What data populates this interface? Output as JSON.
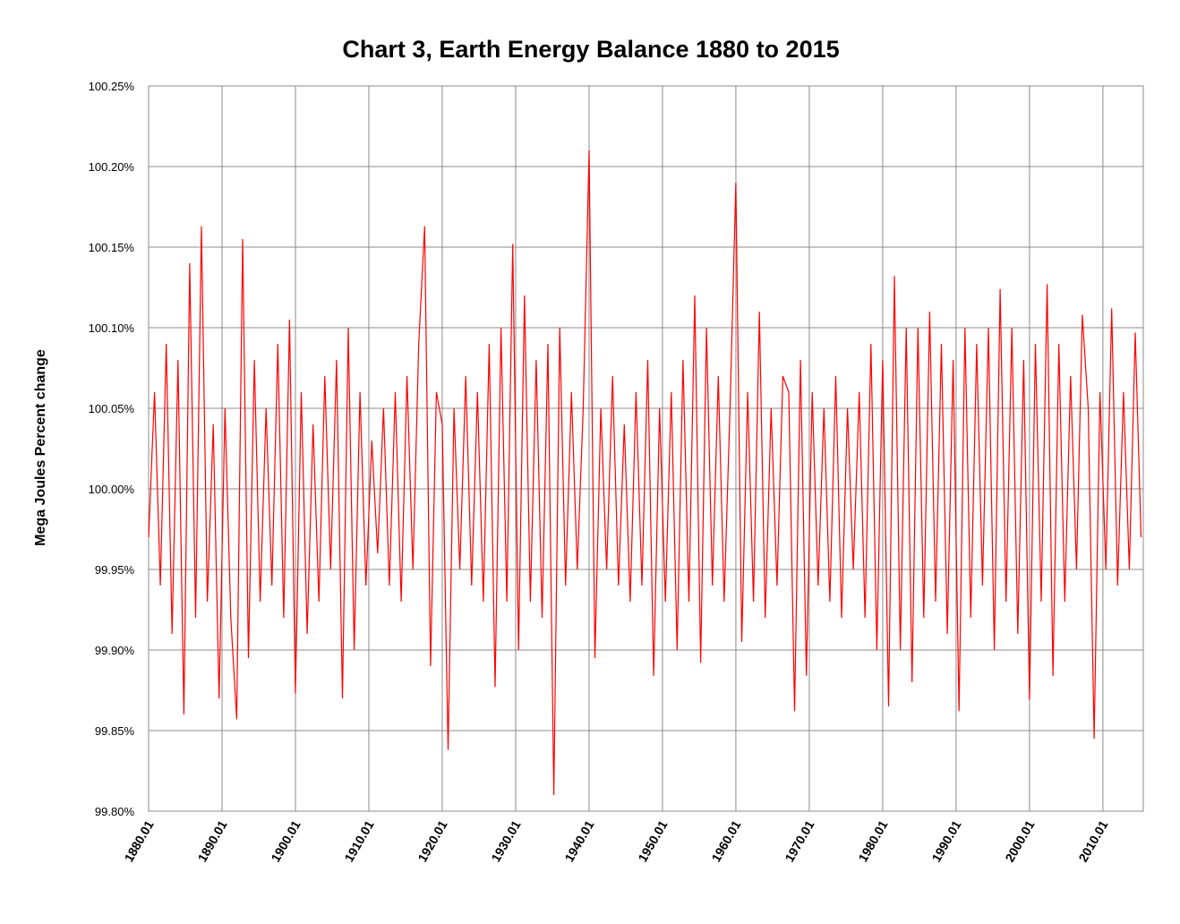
{
  "chart_data": {
    "type": "line",
    "title": "Chart 3, Earth Energy Balance 1880 to 2015",
    "y_label": "Mega Joules Percent change",
    "x": [
      1880.0,
      1880.8,
      1881.6,
      1882.4,
      1883.2,
      1884.0,
      1884.8,
      1885.6,
      1886.4,
      1887.2,
      1888.0,
      1888.8,
      1889.6,
      1890.4,
      1891.2,
      1892.0,
      1892.8,
      1893.6,
      1894.4,
      1895.2,
      1896.0,
      1896.8,
      1897.6,
      1898.4,
      1899.2,
      1900.0,
      1900.8,
      1901.6,
      1902.4,
      1903.2,
      1904.0,
      1904.8,
      1905.6,
      1906.4,
      1907.2,
      1908.0,
      1908.8,
      1909.6,
      1910.4,
      1911.2,
      1912.0,
      1912.8,
      1913.6,
      1914.4,
      1915.2,
      1916.0,
      1916.8,
      1917.6,
      1918.4,
      1919.2,
      1920.0,
      1920.8,
      1921.6,
      1922.4,
      1923.2,
      1924.0,
      1924.8,
      1925.6,
      1926.4,
      1927.2,
      1928.0,
      1928.8,
      1929.6,
      1930.4,
      1931.2,
      1932.0,
      1932.8,
      1933.6,
      1934.4,
      1935.2,
      1936.0,
      1936.8,
      1937.6,
      1938.4,
      1939.2,
      1940.0,
      1940.8,
      1941.6,
      1942.4,
      1943.2,
      1944.0,
      1944.8,
      1945.6,
      1946.4,
      1947.2,
      1948.0,
      1948.8,
      1949.6,
      1950.4,
      1951.2,
      1952.0,
      1952.8,
      1953.6,
      1954.4,
      1955.2,
      1956.0,
      1956.8,
      1957.6,
      1958.4,
      1959.2,
      1960.0,
      1960.8,
      1961.6,
      1962.4,
      1963.2,
      1964.0,
      1964.8,
      1965.6,
      1966.4,
      1967.2,
      1968.0,
      1968.8,
      1969.6,
      1970.4,
      1971.2,
      1972.0,
      1972.8,
      1973.6,
      1974.4,
      1975.2,
      1976.0,
      1976.8,
      1977.6,
      1978.4,
      1979.2,
      1980.0,
      1980.8,
      1981.6,
      1982.4,
      1983.2,
      1984.0,
      1984.8,
      1985.6,
      1986.4,
      1987.2,
      1988.0,
      1988.8,
      1989.6,
      1990.4,
      1991.2,
      1992.0,
      1992.8,
      1993.6,
      1994.4,
      1995.2,
      1996.0,
      1996.8,
      1997.6,
      1998.4,
      1999.2,
      2000.0,
      2000.8,
      2001.6,
      2002.4,
      2003.2,
      2004.0,
      2004.8,
      2005.6,
      2006.4,
      2007.2,
      2008.0,
      2008.8,
      2009.6,
      2010.4,
      2011.2,
      2012.0,
      2012.8,
      2013.6,
      2014.4,
      2015.2
    ],
    "series": [
      {
        "name": "Mega Joules Percent change",
        "color": "#ff0000",
        "values": [
          99.97,
          100.06,
          99.94,
          100.09,
          99.91,
          100.08,
          99.86,
          100.14,
          99.92,
          100.163,
          99.93,
          100.04,
          99.87,
          100.05,
          99.92,
          99.857,
          100.155,
          99.895,
          100.08,
          99.93,
          100.05,
          99.94,
          100.09,
          99.92,
          100.105,
          99.873,
          100.06,
          99.91,
          100.04,
          99.93,
          100.07,
          99.95,
          100.08,
          99.87,
          100.1,
          99.9,
          100.06,
          99.94,
          100.03,
          99.96,
          100.05,
          99.94,
          100.06,
          99.93,
          100.07,
          99.95,
          100.09,
          100.163,
          99.89,
          100.06,
          100.04,
          99.838,
          100.05,
          99.95,
          100.07,
          99.94,
          100.06,
          99.93,
          100.09,
          99.877,
          100.1,
          99.93,
          100.152,
          99.9,
          100.12,
          99.93,
          100.08,
          99.92,
          100.09,
          99.81,
          100.1,
          99.94,
          100.06,
          99.95,
          100.05,
          100.21,
          99.895,
          100.05,
          99.95,
          100.07,
          99.94,
          100.04,
          99.93,
          100.06,
          99.94,
          100.08,
          99.884,
          100.05,
          99.93,
          100.06,
          99.9,
          100.08,
          99.93,
          100.12,
          99.892,
          100.1,
          99.94,
          100.07,
          99.93,
          100.05,
          100.19,
          99.905,
          100.06,
          99.93,
          100.11,
          99.92,
          100.05,
          99.94,
          100.07,
          100.06,
          99.862,
          100.08,
          99.884,
          100.06,
          99.94,
          100.05,
          99.93,
          100.07,
          99.92,
          100.05,
          99.95,
          100.06,
          99.92,
          100.09,
          99.9,
          100.08,
          99.865,
          100.132,
          99.9,
          100.1,
          99.88,
          100.1,
          99.92,
          100.11,
          99.93,
          100.09,
          99.91,
          100.08,
          99.862,
          100.1,
          99.92,
          100.09,
          99.94,
          100.1,
          99.9,
          100.124,
          99.93,
          100.1,
          99.91,
          100.08,
          99.869,
          100.09,
          99.93,
          100.127,
          99.884,
          100.09,
          99.93,
          100.07,
          99.95,
          100.108,
          100.05,
          99.845,
          100.06,
          99.95,
          100.112,
          99.94,
          100.06,
          99.95,
          100.097,
          99.97
        ]
      }
    ],
    "xlim": [
      1880,
      2015.5
    ],
    "xticks": [
      {
        "value": 1880,
        "label": "1880.01"
      },
      {
        "value": 1890,
        "label": "1890.01"
      },
      {
        "value": 1900,
        "label": "1900.01"
      },
      {
        "value": 1910,
        "label": "1910.01"
      },
      {
        "value": 1920,
        "label": "1920.01"
      },
      {
        "value": 1930,
        "label": "1930.01"
      },
      {
        "value": 1940,
        "label": "1940.01"
      },
      {
        "value": 1950,
        "label": "1950.01"
      },
      {
        "value": 1960,
        "label": "1960.01"
      },
      {
        "value": 1970,
        "label": "1970.01"
      },
      {
        "value": 1980,
        "label": "1980.01"
      },
      {
        "value": 1990,
        "label": "1990.01"
      },
      {
        "value": 2000,
        "label": "2000.01"
      },
      {
        "value": 2010,
        "label": "2010.01"
      }
    ],
    "ylim": [
      99.8,
      100.25
    ],
    "yticks": [
      {
        "value": 99.8,
        "label": "99.80%"
      },
      {
        "value": 99.85,
        "label": "99.85%"
      },
      {
        "value": 99.9,
        "label": "99.90%"
      },
      {
        "value": 99.95,
        "label": "99.95%"
      },
      {
        "value": 100,
        "label": "100.00%"
      },
      {
        "value": 100.05,
        "label": "100.05%"
      },
      {
        "value": 100.1,
        "label": "100.10%"
      },
      {
        "value": 100.15,
        "label": "100.15%"
      },
      {
        "value": 100.2,
        "label": "100.20%"
      },
      {
        "value": 100.25,
        "label": "100.25%"
      }
    ],
    "grid": true
  }
}
